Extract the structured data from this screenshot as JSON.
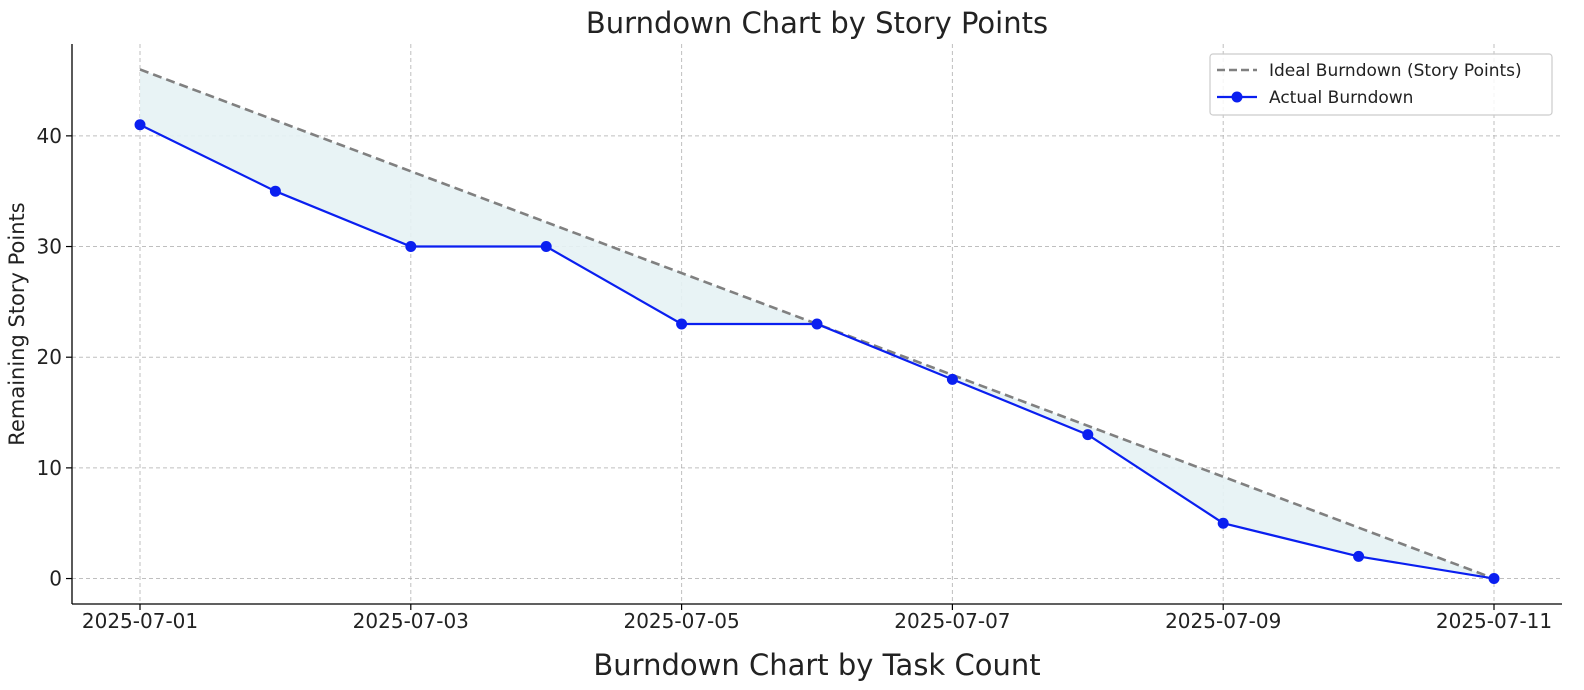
{
  "chart_data": {
    "type": "line",
    "title": "Burndown Chart by Story Points",
    "xlabel": "",
    "ylabel": "Remaining Story Points",
    "footer_text": "Burndown Chart by Task Count",
    "x": [
      "2025-07-01",
      "2025-07-02",
      "2025-07-03",
      "2025-07-04",
      "2025-07-05",
      "2025-07-06",
      "2025-07-07",
      "2025-07-08",
      "2025-07-09",
      "2025-07-10",
      "2025-07-11"
    ],
    "x_ticks": [
      "2025-07-01",
      "2025-07-03",
      "2025-07-05",
      "2025-07-07",
      "2025-07-09",
      "2025-07-11"
    ],
    "y_ticks": [
      0,
      10,
      20,
      30,
      40
    ],
    "ylim": [
      -2.3,
      48.3
    ],
    "grid": true,
    "legend_position": "top-right",
    "fill_between_series": true,
    "fill_color": "#e6f2f4",
    "series": [
      {
        "name": "Ideal Burndown (Story Points)",
        "style": "dashed",
        "color": "#808080",
        "start": 46,
        "end": 0
      },
      {
        "name": "Actual Burndown",
        "style": "solid-markers",
        "color": "#0a1ff0",
        "values": [
          41,
          35,
          30,
          30,
          23,
          23,
          18,
          13,
          5,
          2,
          0
        ]
      }
    ]
  }
}
